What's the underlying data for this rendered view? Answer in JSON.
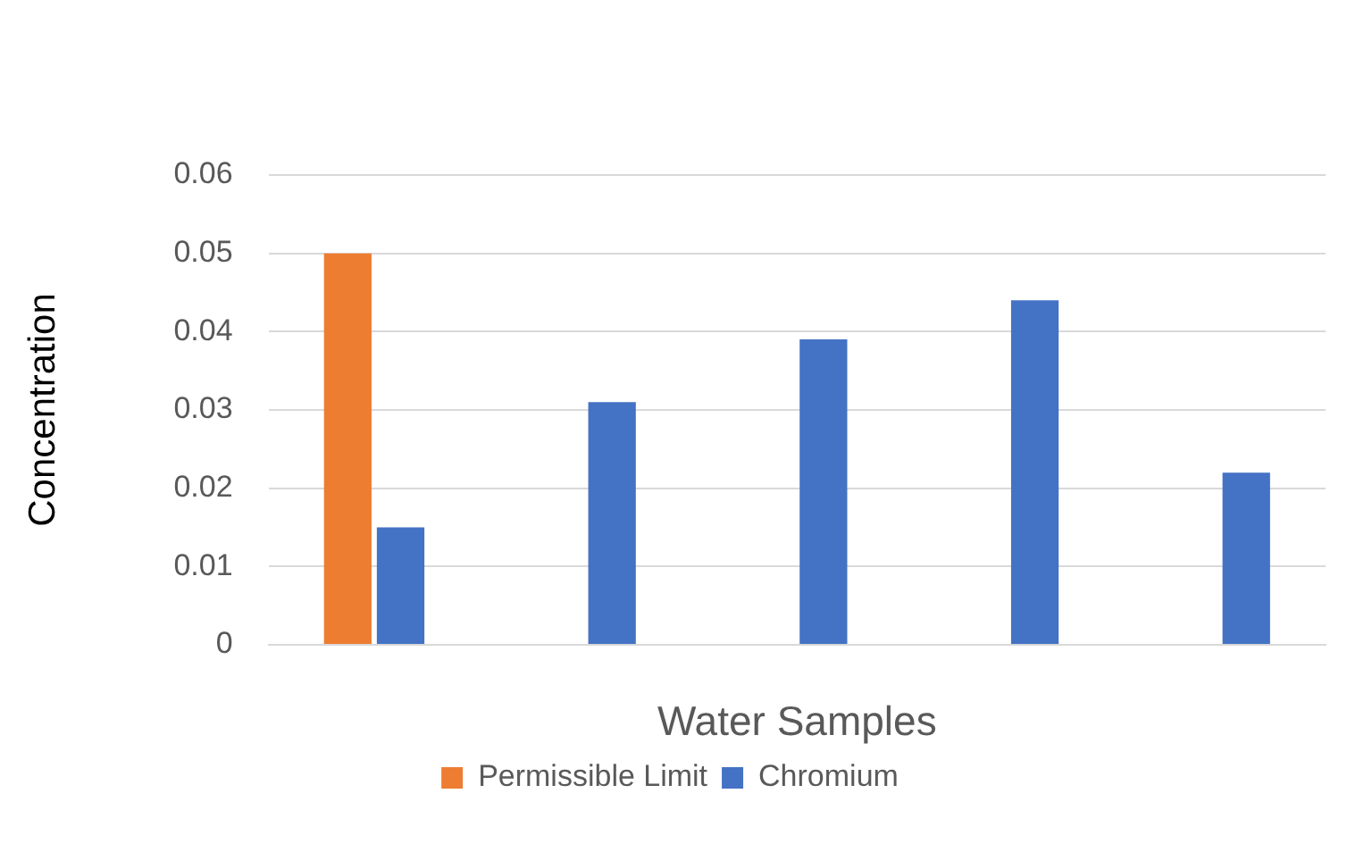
{
  "chart_data": {
    "type": "bar",
    "xlabel": "Water Samples",
    "ylabel": "Concentration",
    "categories": [
      null,
      null,
      null,
      null,
      null
    ],
    "series": [
      {
        "name": "Permissible Limit",
        "color": "#ed7d31",
        "values": [
          0.05,
          null,
          null,
          null,
          null
        ]
      },
      {
        "name": "Chromium",
        "color": "#4472c4",
        "values": [
          0.015,
          0.031,
          0.039,
          0.044,
          0.022
        ]
      }
    ],
    "ylim": [
      0,
      0.06
    ],
    "yticks": [
      0,
      0.01,
      0.02,
      0.03,
      0.04,
      0.05,
      0.06
    ],
    "grid": "y",
    "legend": "bottom"
  }
}
